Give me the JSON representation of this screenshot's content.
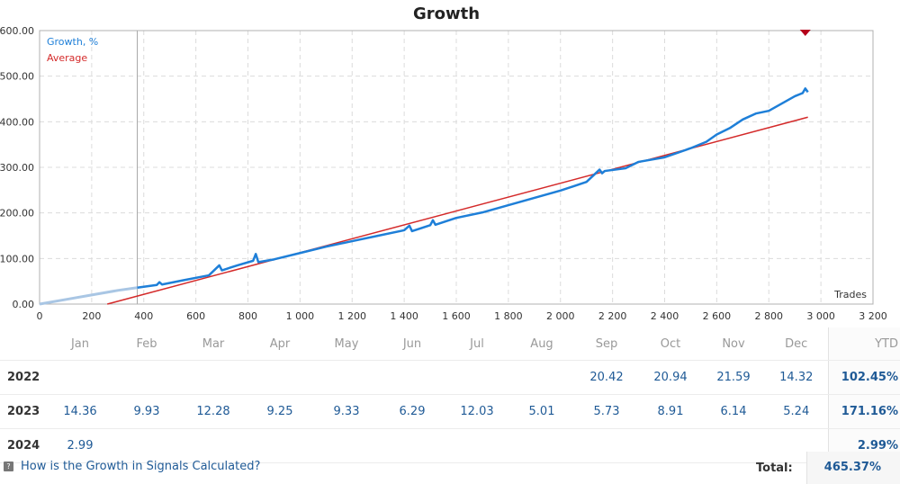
{
  "chart_data": {
    "type": "line",
    "title": "Growth",
    "xlabel": "Trades",
    "ylabel": "",
    "xlim": [
      0,
      3200
    ],
    "ylim": [
      0,
      600
    ],
    "grid": true,
    "legend": "top-left",
    "x_ticks": [
      "0",
      "200",
      "400",
      "600",
      "800",
      "1 000",
      "1 200",
      "1 400",
      "1 600",
      "1 800",
      "2 000",
      "2 200",
      "2 400",
      "2 600",
      "2 800",
      "3 000",
      "3 200"
    ],
    "y_ticks": [
      "0.00",
      "100.00",
      "200.00",
      "300.00",
      "400.00",
      "500.00",
      "600.00"
    ],
    "series": [
      {
        "name": "Growth, %",
        "color": "#1e7fd8",
        "x": [
          0,
          100,
          200,
          300,
          375,
          450,
          460,
          470,
          550,
          650,
          690,
          700,
          760,
          820,
          830,
          840,
          900,
          1000,
          1100,
          1200,
          1300,
          1400,
          1420,
          1430,
          1500,
          1510,
          1520,
          1600,
          1700,
          1800,
          1900,
          2000,
          2100,
          2150,
          2160,
          2170,
          2250,
          2300,
          2400,
          2500,
          2560,
          2600,
          2650,
          2700,
          2750,
          2800,
          2850,
          2900,
          2930,
          2940,
          2950
        ],
        "y": [
          0,
          10,
          20,
          30,
          36,
          42,
          48,
          43,
          52,
          63,
          85,
          74,
          85,
          95,
          110,
          92,
          98,
          112,
          126,
          138,
          150,
          162,
          172,
          160,
          173,
          184,
          174,
          189,
          201,
          217,
          233,
          249,
          268,
          295,
          287,
          292,
          298,
          312,
          322,
          342,
          356,
          372,
          386,
          405,
          418,
          424,
          440,
          456,
          463,
          473,
          465
        ]
      },
      {
        "name": "Average",
        "color": "#d42a2a",
        "x": [
          260,
          2950
        ],
        "y": [
          0,
          410
        ]
      }
    ],
    "highlight_segment": {
      "x_end": 375,
      "color": "#a9c6e4"
    },
    "marker": {
      "x": 2940,
      "y": 600,
      "color": "#b5001a"
    },
    "divider_x": 375
  },
  "table": {
    "months": [
      "Jan",
      "Feb",
      "Mar",
      "Apr",
      "May",
      "Jun",
      "Jul",
      "Aug",
      "Sep",
      "Oct",
      "Nov",
      "Dec"
    ],
    "ytd_label": "YTD",
    "rows": [
      {
        "year": "2022",
        "values": [
          "",
          "",
          "",
          "",
          "",
          "",
          "",
          "",
          "20.42",
          "20.94",
          "21.59",
          "14.32"
        ],
        "ytd": "102.45%"
      },
      {
        "year": "2023",
        "values": [
          "14.36",
          "9.93",
          "12.28",
          "9.25",
          "9.33",
          "6.29",
          "12.03",
          "5.01",
          "5.73",
          "8.91",
          "6.14",
          "5.24"
        ],
        "ytd": "171.16%"
      },
      {
        "year": "2024",
        "values": [
          "2.99",
          "",
          "",
          "",
          "",
          "",
          "",
          "",
          "",
          "",
          "",
          ""
        ],
        "ytd": "2.99%"
      }
    ]
  },
  "footer": {
    "help_text": "How is the Growth in Signals Calculated?",
    "total_label": "Total:",
    "total_value": "465.37%"
  }
}
